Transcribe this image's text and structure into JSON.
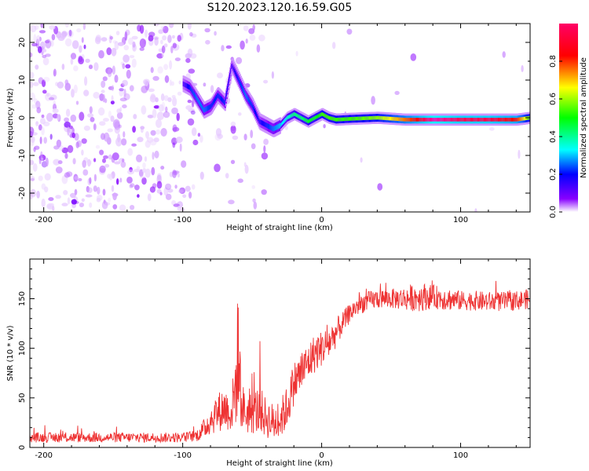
{
  "title": "S120.2023.120.16.59.G05",
  "chart_data": [
    {
      "type": "heatmap",
      "description": "spectrogram",
      "xlabel": "Height of straight line (km)",
      "ylabel": "Frequency (Hz)",
      "xlim": [
        -210,
        150
      ],
      "ylim": [
        -25,
        25
      ],
      "xticks": [
        -200,
        -100,
        0,
        100
      ],
      "yticks": [
        -20,
        -10,
        0,
        10,
        20
      ],
      "colorbar": {
        "label": "Normalized spectral amplitude",
        "range": [
          0,
          1
        ],
        "ticks": [
          "0.0",
          "0.2",
          "0.4",
          "0.6",
          "0.8"
        ],
        "colormap": [
          "#ffffff",
          "#8800ff",
          "#0000ff",
          "#00ffff",
          "#00ff00",
          "#ffff00",
          "#ff0000",
          "#ff00ff"
        ]
      },
      "ridge_x": [
        -100,
        -95,
        -90,
        -85,
        -80,
        -75,
        -70,
        -65,
        -60,
        -55,
        -50,
        -45,
        -40,
        -35,
        -30,
        -25,
        -20,
        -15,
        -10,
        -5,
        0,
        5,
        10,
        20,
        40,
        60,
        80,
        100,
        120,
        140,
        150
      ],
      "ridge_freq": [
        9,
        8,
        5,
        2,
        3,
        6,
        4,
        14,
        10,
        6,
        3,
        -1,
        -2,
        -3,
        -2,
        0,
        1,
        0,
        -1,
        0,
        1,
        0,
        -0.5,
        -0.3,
        0,
        -0.5,
        -0.5,
        -0.5,
        -0.5,
        -0.5,
        0
      ],
      "ridge_amplitude": [
        0.2,
        0.3,
        0.35,
        0.35,
        0.3,
        0.3,
        0.3,
        0.2,
        0.3,
        0.35,
        0.3,
        0.25,
        0.3,
        0.35,
        0.4,
        0.45,
        0.5,
        0.5,
        0.55,
        0.55,
        0.6,
        0.6,
        0.6,
        0.6,
        0.65,
        0.8,
        0.95,
        0.9,
        0.9,
        0.85,
        0.6
      ]
    },
    {
      "type": "line",
      "xlabel": "Height of straight line (km)",
      "ylabel": "SNR (10 * v/v)",
      "xlim": [
        -210,
        150
      ],
      "ylim": [
        0,
        190
      ],
      "xticks": [
        -200,
        -100,
        0,
        100
      ],
      "yticks": [
        0,
        50,
        100,
        150
      ],
      "color": "#ee3333",
      "series": [
        {
          "x": [
            -210,
            -180,
            -150,
            -120,
            -100,
            -90,
            -85,
            -80,
            -75,
            -70,
            -65,
            -62,
            -60,
            -58,
            -55,
            -50,
            -45,
            -40,
            -35,
            -30,
            -25,
            -20,
            -15,
            -10,
            -5,
            0,
            5,
            10,
            15,
            20,
            25,
            30,
            40,
            50,
            60,
            70,
            80,
            90,
            100,
            110,
            120,
            130,
            140,
            150
          ],
          "y": [
            10,
            10,
            10,
            10,
            10,
            12,
            18,
            28,
            35,
            40,
            35,
            60,
            100,
            45,
            35,
            35,
            38,
            30,
            25,
            28,
            40,
            65,
            75,
            85,
            95,
            100,
            105,
            115,
            125,
            135,
            142,
            146,
            150,
            150,
            150,
            152,
            152,
            150,
            148,
            148,
            147,
            147,
            148,
            150
          ],
          "noise": [
            5,
            5,
            5,
            5,
            5,
            6,
            10,
            15,
            20,
            22,
            20,
            40,
            70,
            25,
            22,
            22,
            25,
            20,
            20,
            20,
            22,
            22,
            22,
            20,
            20,
            18,
            18,
            15,
            12,
            10,
            10,
            10,
            10,
            10,
            12,
            15,
            12,
            12,
            10,
            10,
            10,
            10,
            10,
            10
          ]
        }
      ]
    }
  ]
}
